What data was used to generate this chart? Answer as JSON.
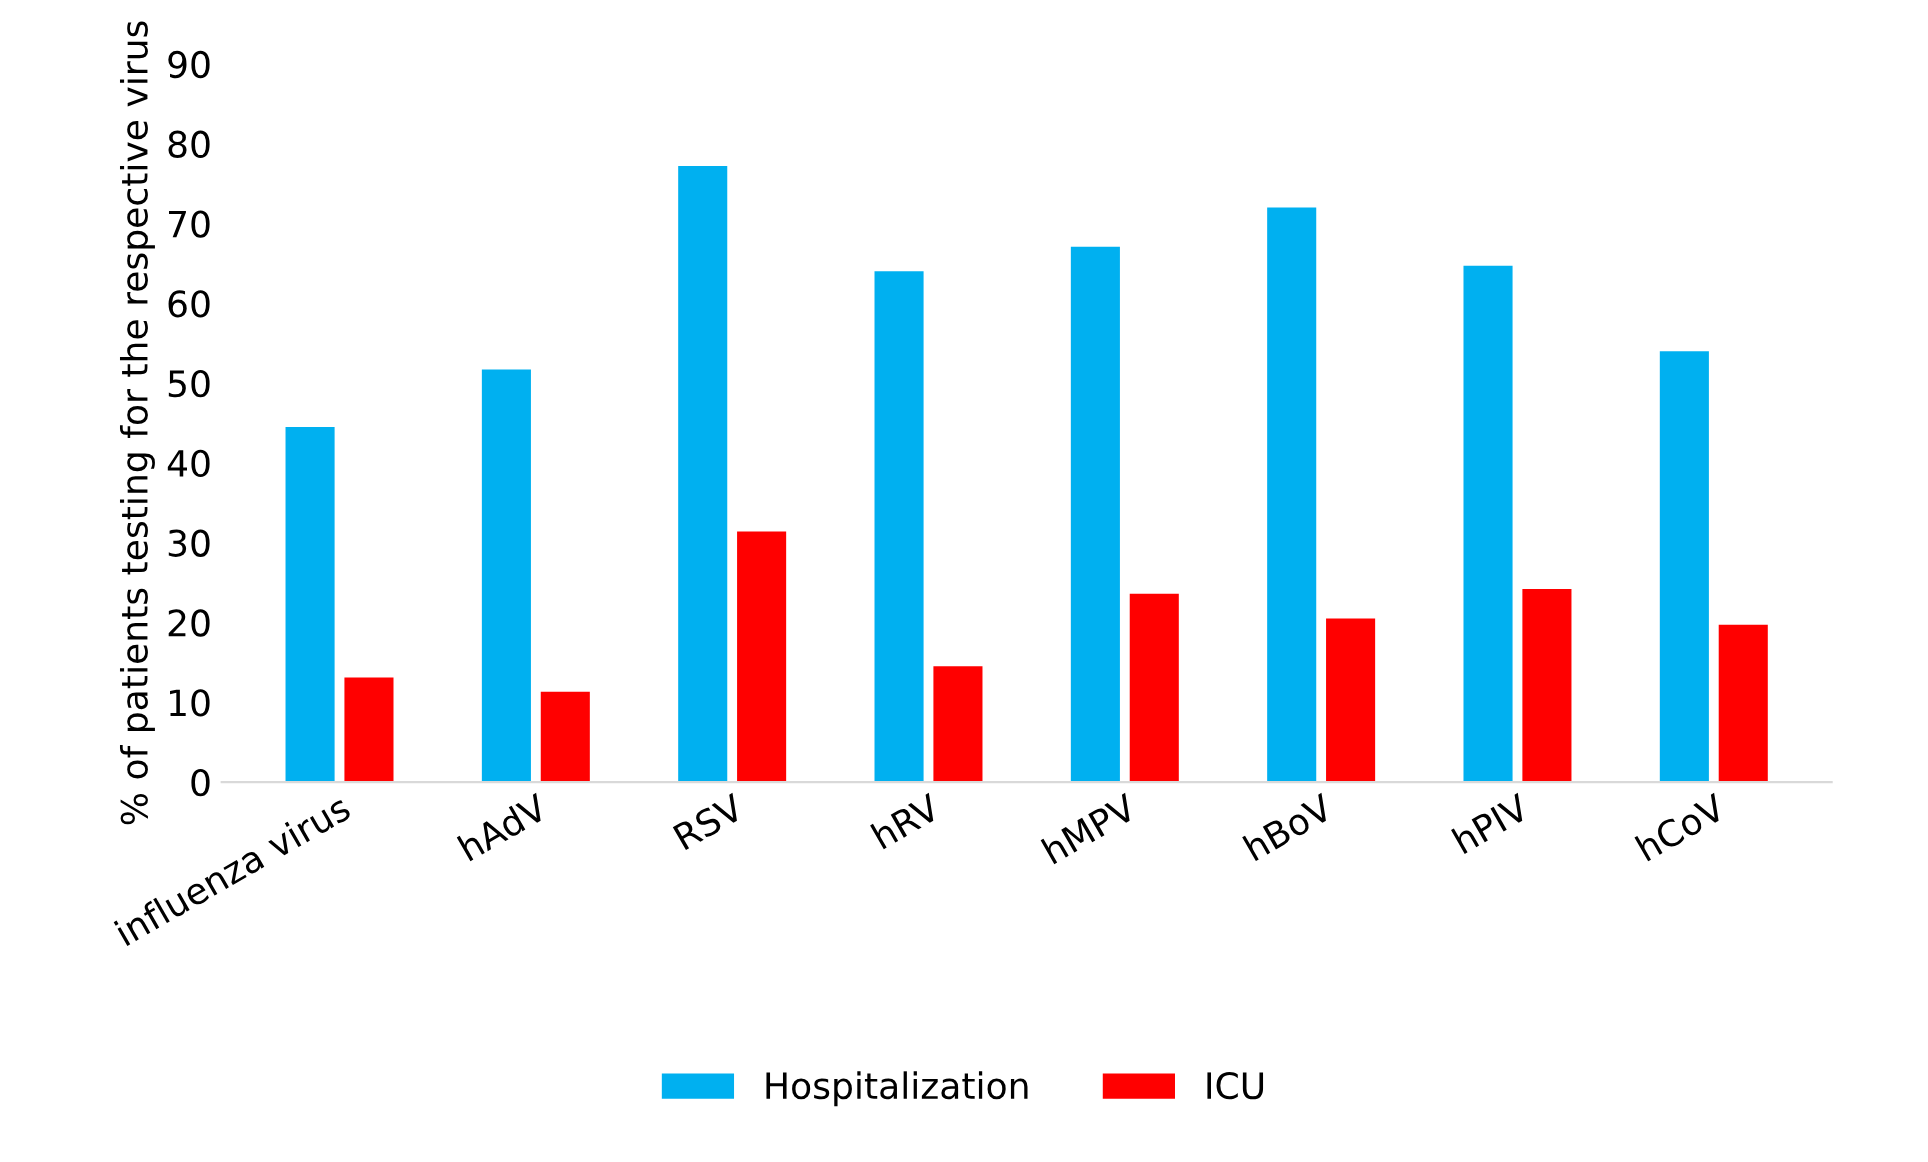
{
  "chart_data": {
    "type": "bar",
    "ylabel": "% of patients testing for the respective virus",
    "categories": [
      "influenza virus",
      "hAdV",
      "RSV",
      "hRV",
      "hMPV",
      "hBoV",
      "hPIV",
      "hCoV"
    ],
    "series": [
      {
        "name": "Hospitalization",
        "color": "#00b0f0",
        "values": [
          44.5,
          51.7,
          77.2,
          64.0,
          67.1,
          72.0,
          64.7,
          54.0
        ]
      },
      {
        "name": "ICU",
        "color": "#ff0000",
        "values": [
          13.1,
          11.3,
          31.4,
          14.5,
          23.6,
          20.5,
          24.2,
          19.7
        ]
      }
    ],
    "ylim": [
      0,
      90
    ],
    "yticks": [
      0,
      10,
      20,
      30,
      40,
      50,
      60,
      70,
      80,
      90
    ],
    "grid": false,
    "legend": "bottom"
  }
}
